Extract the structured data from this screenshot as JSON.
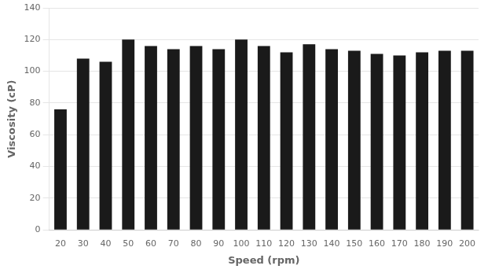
{
  "chart_data": {
    "type": "bar",
    "categories": [
      20,
      30,
      40,
      50,
      60,
      70,
      80,
      90,
      100,
      110,
      120,
      130,
      140,
      150,
      160,
      170,
      180,
      190,
      200
    ],
    "values": [
      76,
      108,
      106,
      120,
      116,
      114,
      116,
      114,
      120,
      116,
      112,
      117,
      114,
      113,
      111,
      110,
      112,
      113,
      113
    ],
    "color": "#1a1a1a",
    "xlabel": "Speed (rpm)",
    "ylabel": "Viscosity (cP)",
    "ylim": [
      0,
      140
    ],
    "yticks": [
      0,
      20,
      40,
      60,
      80,
      100,
      120,
      140
    ],
    "grid": true
  }
}
